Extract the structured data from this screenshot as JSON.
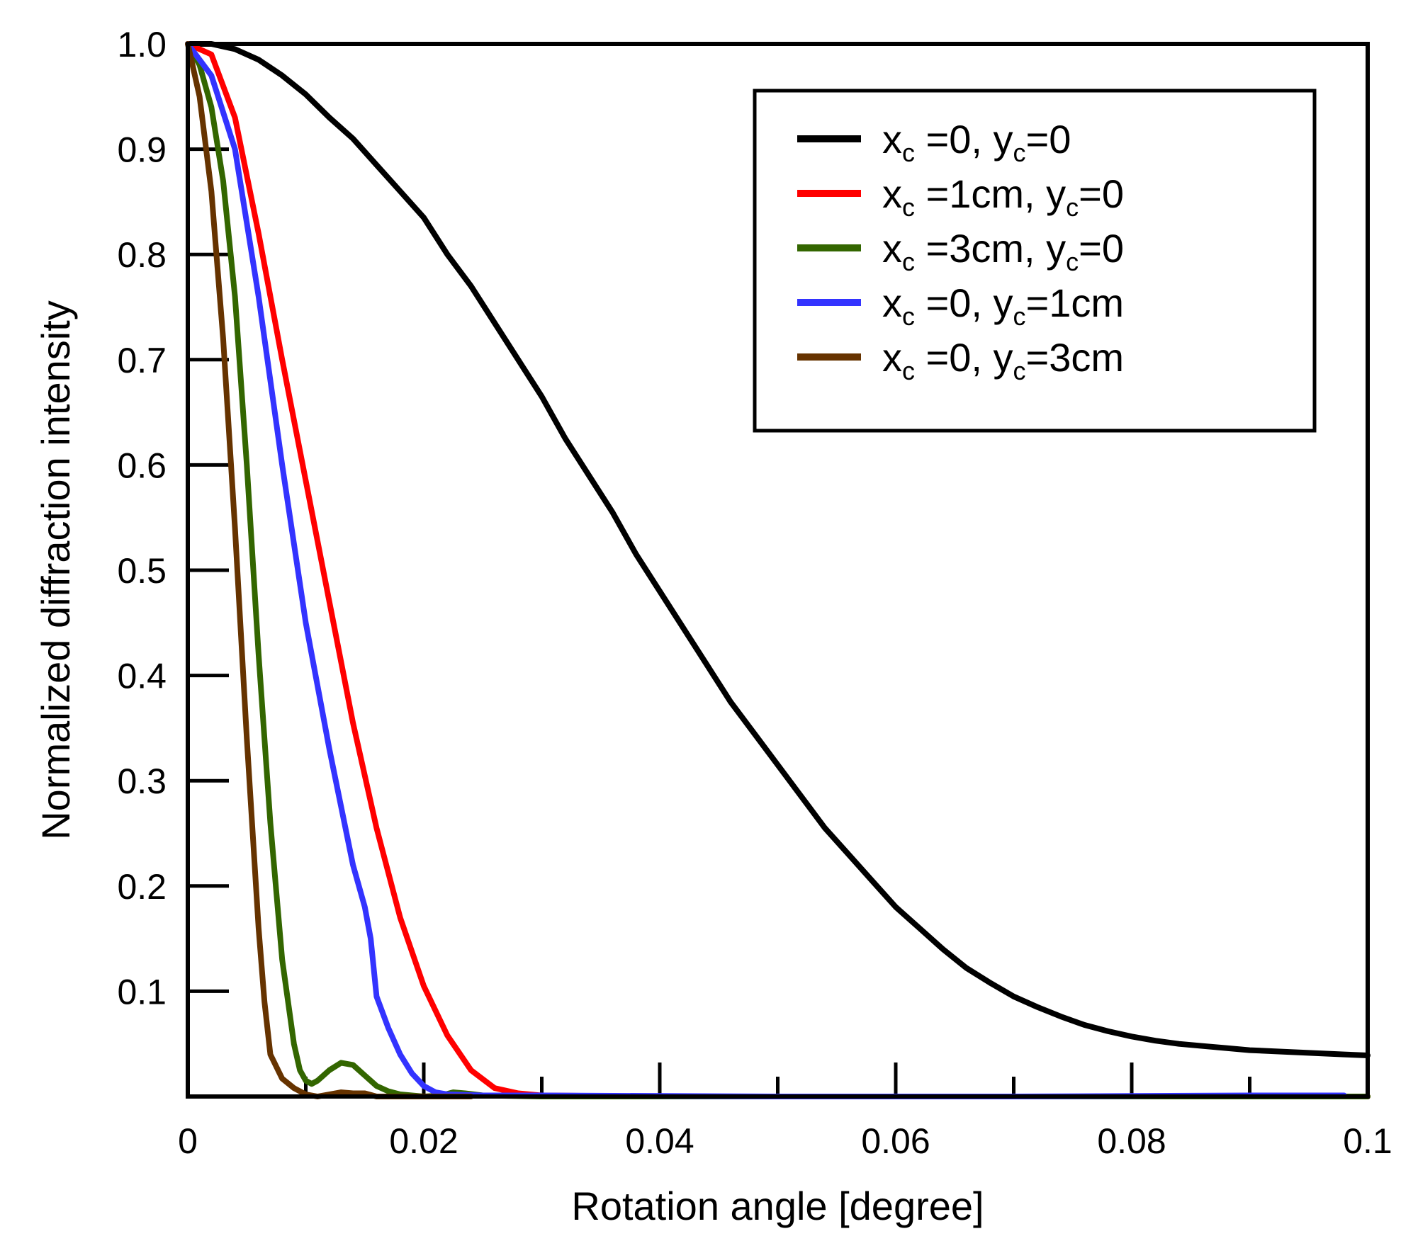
{
  "chart_data": {
    "type": "line",
    "xlabel": "Rotation angle [degree]",
    "ylabel": "Normalized diffraction intensity",
    "xlim": [
      0,
      0.1
    ],
    "ylim": [
      0,
      1.0
    ],
    "x_ticks": [
      {
        "value": 0,
        "label": "0"
      },
      {
        "value": 0.02,
        "label": "0.02"
      },
      {
        "value": 0.04,
        "label": "0.04"
      },
      {
        "value": 0.06,
        "label": "0.06"
      },
      {
        "value": 0.08,
        "label": "0.08"
      },
      {
        "value": 0.1,
        "label": "0.1"
      }
    ],
    "x_minor_ticks": [
      0.01,
      0.03,
      0.05,
      0.07,
      0.09
    ],
    "y_ticks": [
      {
        "value": 0.1,
        "label": "0.1"
      },
      {
        "value": 0.2,
        "label": "0.2"
      },
      {
        "value": 0.3,
        "label": "0.3"
      },
      {
        "value": 0.4,
        "label": "0.4"
      },
      {
        "value": 0.5,
        "label": "0.5"
      },
      {
        "value": 0.6,
        "label": "0.6"
      },
      {
        "value": 0.7,
        "label": "0.7"
      },
      {
        "value": 0.8,
        "label": "0.8"
      },
      {
        "value": 0.9,
        "label": "0.9"
      },
      {
        "value": 1.0,
        "label": "1.0"
      }
    ],
    "grid": false,
    "legend_position": "top-right",
    "series": [
      {
        "legend": {
          "x_var": "x",
          "x_sub": "c",
          "x_val": " =0, ",
          "y_var": "y",
          "y_sub": "c",
          "y_val": "=0"
        },
        "color": "#000000",
        "points": [
          [
            0,
            1.0
          ],
          [
            0.002,
            1.0
          ],
          [
            0.004,
            0.995
          ],
          [
            0.006,
            0.985
          ],
          [
            0.008,
            0.97
          ],
          [
            0.01,
            0.952
          ],
          [
            0.012,
            0.93
          ],
          [
            0.014,
            0.91
          ],
          [
            0.016,
            0.885
          ],
          [
            0.018,
            0.86
          ],
          [
            0.02,
            0.835
          ],
          [
            0.022,
            0.8
          ],
          [
            0.024,
            0.77
          ],
          [
            0.026,
            0.735
          ],
          [
            0.028,
            0.7
          ],
          [
            0.03,
            0.665
          ],
          [
            0.032,
            0.625
          ],
          [
            0.034,
            0.59
          ],
          [
            0.036,
            0.555
          ],
          [
            0.038,
            0.515
          ],
          [
            0.04,
            0.48
          ],
          [
            0.042,
            0.445
          ],
          [
            0.044,
            0.41
          ],
          [
            0.046,
            0.375
          ],
          [
            0.048,
            0.345
          ],
          [
            0.05,
            0.315
          ],
          [
            0.052,
            0.285
          ],
          [
            0.054,
            0.255
          ],
          [
            0.056,
            0.23
          ],
          [
            0.058,
            0.205
          ],
          [
            0.06,
            0.18
          ],
          [
            0.062,
            0.16
          ],
          [
            0.064,
            0.14
          ],
          [
            0.066,
            0.122
          ],
          [
            0.068,
            0.108
          ],
          [
            0.07,
            0.095
          ],
          [
            0.072,
            0.085
          ],
          [
            0.074,
            0.076
          ],
          [
            0.076,
            0.068
          ],
          [
            0.078,
            0.062
          ],
          [
            0.08,
            0.057
          ],
          [
            0.082,
            0.053
          ],
          [
            0.084,
            0.05
          ],
          [
            0.086,
            0.048
          ],
          [
            0.088,
            0.046
          ],
          [
            0.09,
            0.044
          ],
          [
            0.092,
            0.043
          ],
          [
            0.094,
            0.042
          ],
          [
            0.096,
            0.041
          ],
          [
            0.098,
            0.04
          ],
          [
            0.1,
            0.039
          ]
        ]
      },
      {
        "legend": {
          "x_var": "x",
          "x_sub": "c",
          "x_val": " =1cm, ",
          "y_var": "y",
          "y_sub": "c",
          "y_val": "=0"
        },
        "color": "#ff0000",
        "points": [
          [
            0,
            1.0
          ],
          [
            0.002,
            0.99
          ],
          [
            0.004,
            0.93
          ],
          [
            0.006,
            0.82
          ],
          [
            0.008,
            0.7
          ],
          [
            0.01,
            0.585
          ],
          [
            0.012,
            0.47
          ],
          [
            0.014,
            0.355
          ],
          [
            0.016,
            0.255
          ],
          [
            0.018,
            0.17
          ],
          [
            0.02,
            0.105
          ],
          [
            0.022,
            0.058
          ],
          [
            0.024,
            0.025
          ],
          [
            0.026,
            0.008
          ],
          [
            0.028,
            0.003
          ],
          [
            0.03,
            0.001
          ],
          [
            0.04,
            0.0
          ],
          [
            0.06,
            0.0
          ],
          [
            0.08,
            0.0
          ],
          [
            0.1,
            0.0
          ]
        ]
      },
      {
        "legend": {
          "x_var": "x",
          "x_sub": "c",
          "x_val": " =3cm, ",
          "y_var": "y",
          "y_sub": "c",
          "y_val": "=0"
        },
        "color": "#336600",
        "points": [
          [
            0,
            1.0
          ],
          [
            0.001,
            0.98
          ],
          [
            0.002,
            0.94
          ],
          [
            0.003,
            0.87
          ],
          [
            0.004,
            0.76
          ],
          [
            0.005,
            0.6
          ],
          [
            0.006,
            0.42
          ],
          [
            0.007,
            0.26
          ],
          [
            0.008,
            0.13
          ],
          [
            0.009,
            0.05
          ],
          [
            0.0095,
            0.025
          ],
          [
            0.01,
            0.015
          ],
          [
            0.0105,
            0.012
          ],
          [
            0.011,
            0.015
          ],
          [
            0.012,
            0.025
          ],
          [
            0.013,
            0.032
          ],
          [
            0.014,
            0.03
          ],
          [
            0.015,
            0.02
          ],
          [
            0.016,
            0.01
          ],
          [
            0.017,
            0.005
          ],
          [
            0.018,
            0.002
          ],
          [
            0.019,
            0.001
          ],
          [
            0.02,
            0.0
          ],
          [
            0.0215,
            0.001
          ],
          [
            0.0225,
            0.004
          ],
          [
            0.0235,
            0.003
          ],
          [
            0.025,
            0.001
          ],
          [
            0.03,
            0.0
          ],
          [
            0.06,
            0.0
          ],
          [
            0.1,
            0.0
          ]
        ]
      },
      {
        "legend": {
          "x_var": "x",
          "x_sub": "c",
          "x_val": " =0, ",
          "y_var": "y",
          "y_sub": "c",
          "y_val": "=1cm"
        },
        "color": "#3333ff",
        "points": [
          [
            0,
            1.0
          ],
          [
            0.002,
            0.97
          ],
          [
            0.004,
            0.9
          ],
          [
            0.006,
            0.76
          ],
          [
            0.008,
            0.6
          ],
          [
            0.01,
            0.45
          ],
          [
            0.012,
            0.33
          ],
          [
            0.014,
            0.22
          ],
          [
            0.015,
            0.18
          ],
          [
            0.0155,
            0.15
          ],
          [
            0.016,
            0.095
          ],
          [
            0.017,
            0.065
          ],
          [
            0.018,
            0.04
          ],
          [
            0.019,
            0.022
          ],
          [
            0.02,
            0.01
          ],
          [
            0.021,
            0.004
          ],
          [
            0.022,
            0.002
          ],
          [
            0.025,
            0.001
          ],
          [
            0.03,
            0.001
          ],
          [
            0.05,
            0.0
          ],
          [
            0.07,
            0.0
          ],
          [
            0.09,
            0.001
          ],
          [
            0.098,
            0.001
          ]
        ]
      },
      {
        "legend": {
          "x_var": "x",
          "x_sub": "c",
          "x_val": " =0, ",
          "y_var": "y",
          "y_sub": "c",
          "y_val": "=3cm"
        },
        "color": "#663300",
        "points": [
          [
            0,
            1.0
          ],
          [
            0.001,
            0.95
          ],
          [
            0.002,
            0.86
          ],
          [
            0.003,
            0.72
          ],
          [
            0.004,
            0.54
          ],
          [
            0.005,
            0.34
          ],
          [
            0.006,
            0.16
          ],
          [
            0.0065,
            0.09
          ],
          [
            0.007,
            0.04
          ],
          [
            0.008,
            0.017
          ],
          [
            0.009,
            0.008
          ],
          [
            0.01,
            0.002
          ],
          [
            0.011,
            0.0
          ],
          [
            0.012,
            0.002
          ],
          [
            0.013,
            0.004
          ],
          [
            0.014,
            0.003
          ],
          [
            0.015,
            0.003
          ],
          [
            0.016,
            0.0
          ],
          [
            0.018,
            0.0
          ],
          [
            0.02,
            0.0
          ],
          [
            0.022,
            0.0
          ],
          [
            0.024,
            0.0
          ]
        ]
      }
    ]
  }
}
